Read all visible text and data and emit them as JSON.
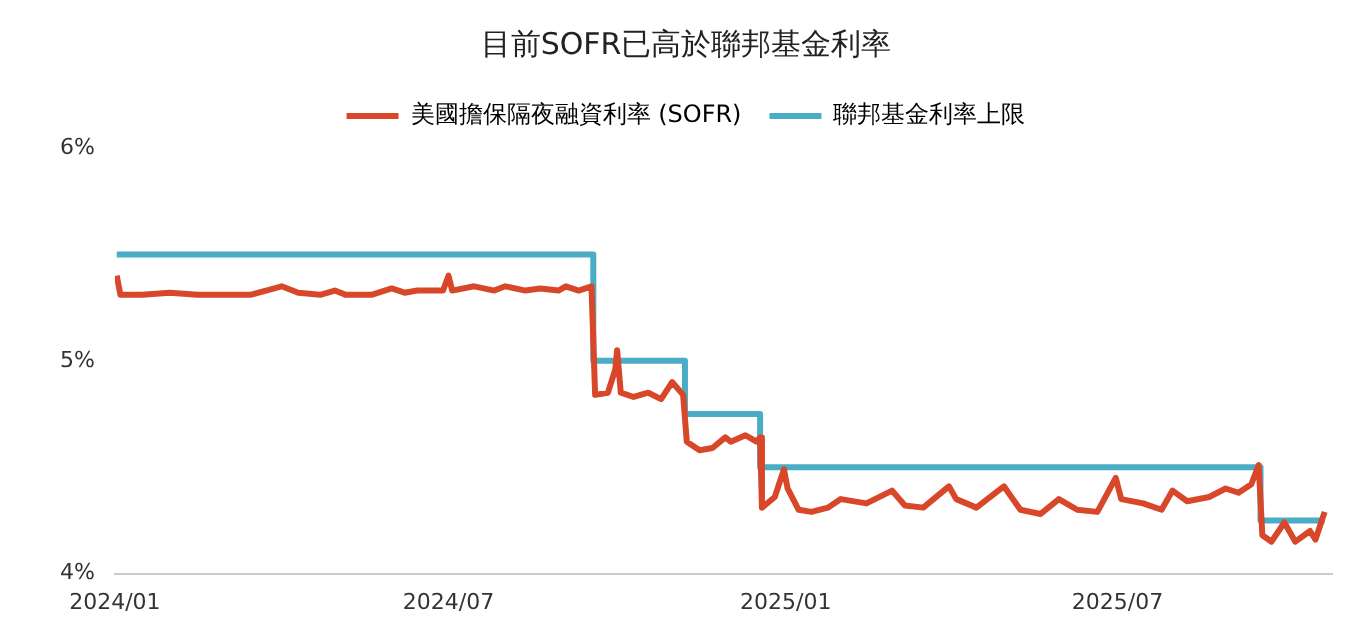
{
  "chart_data": {
    "type": "line",
    "title": "目前SOFR已高於聯邦基金利率",
    "legend": "top",
    "grid": false,
    "marker": "none",
    "line_style": "solid",
    "xlim": [
      "2024-01-01",
      "2025-10-26"
    ],
    "xticks": [
      {
        "value": "2024-01-01",
        "label": "2024/01"
      },
      {
        "value": "2024-07-01",
        "label": "2024/07"
      },
      {
        "value": "2025-01-01",
        "label": "2025/01"
      },
      {
        "value": "2025-07-01",
        "label": "2025/07"
      }
    ],
    "ylim": [
      4,
      6
    ],
    "yticks": [
      {
        "value": 4,
        "label": "4%"
      },
      {
        "value": 5,
        "label": "5%"
      },
      {
        "value": 6,
        "label": "6%"
      }
    ],
    "series": [
      {
        "name": "美國擔保隔夜融資利率 (SOFR)",
        "type": "line",
        "color": "#d9472b",
        "x": [
          "2024-01-02",
          "2024-01-04",
          "2024-01-16",
          "2024-01-31",
          "2024-02-15",
          "2024-02-29",
          "2024-03-15",
          "2024-03-28",
          "2024-04-01",
          "2024-04-10",
          "2024-04-22",
          "2024-04-30",
          "2024-05-06",
          "2024-05-20",
          "2024-05-31",
          "2024-06-07",
          "2024-06-14",
          "2024-06-28",
          "2024-07-01",
          "2024-07-03",
          "2024-07-15",
          "2024-07-26",
          "2024-08-01",
          "2024-08-12",
          "2024-08-20",
          "2024-08-30",
          "2024-09-03",
          "2024-09-10",
          "2024-09-17",
          "2024-09-19",
          "2024-09-26",
          "2024-09-30",
          "2024-10-01",
          "2024-10-03",
          "2024-10-10",
          "2024-10-18",
          "2024-10-25",
          "2024-10-31",
          "2024-11-06",
          "2024-11-08",
          "2024-11-15",
          "2024-11-22",
          "2024-11-29",
          "2024-12-02",
          "2024-12-10",
          "2024-12-16",
          "2024-12-18",
          "2024-12-19",
          "2024-12-26",
          "2024-12-31",
          "2025-01-02",
          "2025-01-08",
          "2025-01-15",
          "2025-01-24",
          "2025-01-31",
          "2025-02-14",
          "2025-02-28",
          "2025-03-07",
          "2025-03-17",
          "2025-03-31",
          "2025-04-04",
          "2025-04-15",
          "2025-04-30",
          "2025-05-09",
          "2025-05-20",
          "2025-05-30",
          "2025-06-09",
          "2025-06-20",
          "2025-06-30",
          "2025-07-03",
          "2025-07-15",
          "2025-07-25",
          "2025-07-31",
          "2025-08-08",
          "2025-08-20",
          "2025-08-29",
          "2025-09-05",
          "2025-09-12",
          "2025-09-16",
          "2025-09-18",
          "2025-09-23",
          "2025-09-30",
          "2025-10-06",
          "2025-10-14",
          "2025-10-17",
          "2025-10-22"
        ],
        "values": [
          5.4,
          5.31,
          5.31,
          5.32,
          5.31,
          5.31,
          5.31,
          5.34,
          5.35,
          5.32,
          5.31,
          5.33,
          5.31,
          5.31,
          5.34,
          5.32,
          5.33,
          5.33,
          5.4,
          5.33,
          5.35,
          5.33,
          5.35,
          5.33,
          5.34,
          5.33,
          5.35,
          5.33,
          5.35,
          4.84,
          4.85,
          4.96,
          5.05,
          4.85,
          4.83,
          4.85,
          4.82,
          4.9,
          4.84,
          4.62,
          4.58,
          4.59,
          4.64,
          4.62,
          4.65,
          4.62,
          4.64,
          4.31,
          4.36,
          4.49,
          4.4,
          4.3,
          4.29,
          4.31,
          4.35,
          4.33,
          4.39,
          4.32,
          4.31,
          4.41,
          4.35,
          4.31,
          4.41,
          4.3,
          4.28,
          4.35,
          4.3,
          4.29,
          4.45,
          4.35,
          4.33,
          4.3,
          4.39,
          4.34,
          4.36,
          4.4,
          4.38,
          4.42,
          4.51,
          4.18,
          4.15,
          4.24,
          4.15,
          4.2,
          4.16,
          4.29
        ]
      },
      {
        "name": "聯邦基金利率上限",
        "type": "step",
        "color": "#4bacc6",
        "x": [
          "2024-01-02",
          "2024-09-18",
          "2024-11-07",
          "2024-12-18",
          "2025-09-17",
          "2025-10-22"
        ],
        "values": [
          5.5,
          5.0,
          4.75,
          4.5,
          4.25,
          4.25
        ]
      }
    ]
  }
}
